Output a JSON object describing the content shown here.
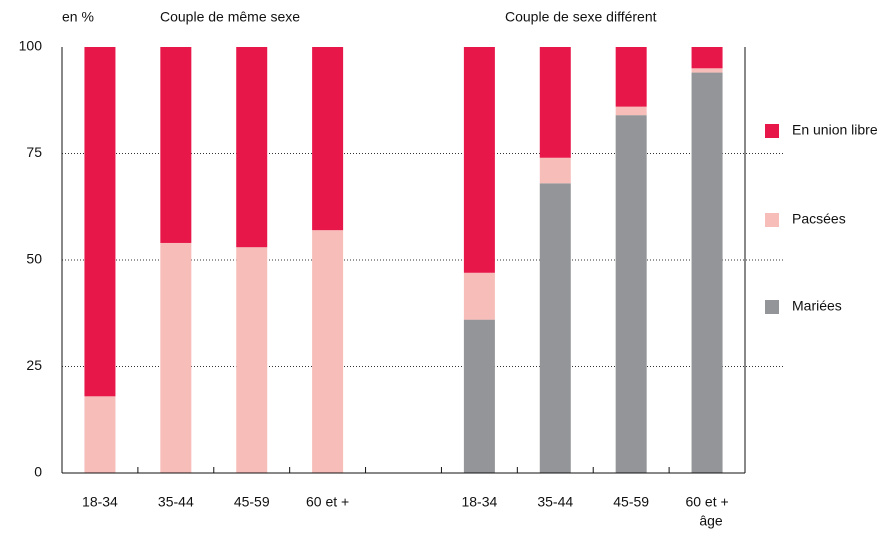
{
  "chart_data": {
    "type": "stacked_bar",
    "y_unit_label": "en %",
    "group_labels": [
      "Couple de même sexe",
      "Couple de sexe différent"
    ],
    "x_label": "âge",
    "categories": [
      "18-34",
      "35-44",
      "45-59",
      "60 et +",
      null,
      "18-34",
      "35-44",
      "45-59",
      "60 et +"
    ],
    "series": [
      {
        "name": "Mariées",
        "color": "#939598",
        "values": [
          0,
          0,
          0,
          0,
          null,
          36,
          68,
          84,
          94
        ]
      },
      {
        "name": "Pacsées",
        "color": "#f7bdb9",
        "values": [
          18,
          54,
          53,
          57,
          null,
          11,
          6,
          2,
          1
        ]
      },
      {
        "name": "En union libre",
        "color": "#e8174a",
        "values": [
          82,
          46,
          47,
          43,
          null,
          53,
          26,
          14,
          5
        ]
      }
    ],
    "ylim": [
      0,
      100
    ],
    "yticks": [
      0,
      25,
      50,
      75,
      100
    ],
    "grid": true,
    "legend": "right"
  }
}
